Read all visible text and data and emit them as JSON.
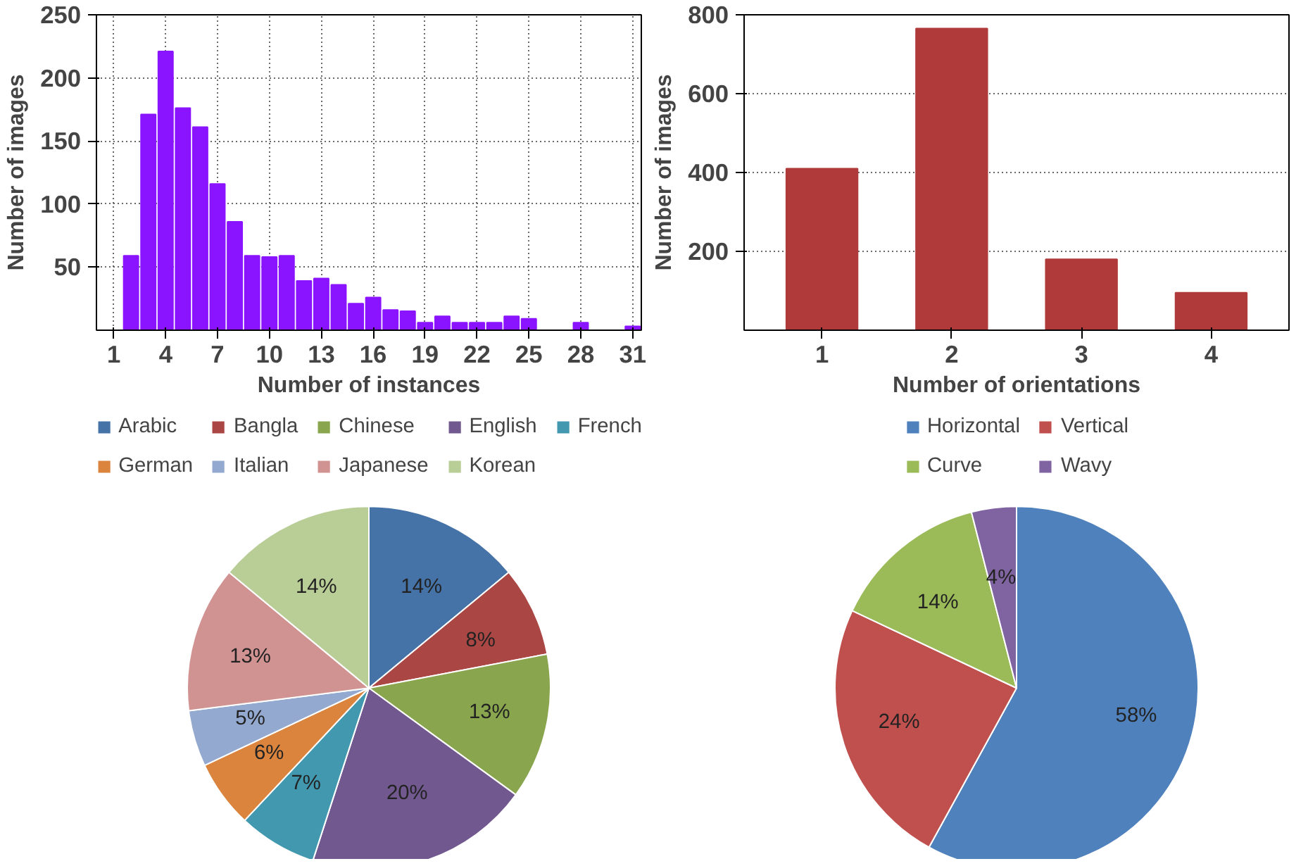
{
  "chart_data": [
    {
      "type": "bar",
      "xlabel": "Number of instances",
      "ylabel": "Number of images",
      "x": [
        2,
        3,
        4,
        5,
        6,
        7,
        8,
        9,
        10,
        11,
        12,
        13,
        14,
        15,
        16,
        17,
        18,
        19,
        20,
        21,
        22,
        23,
        24,
        25,
        28,
        31
      ],
      "values": [
        59,
        171,
        221,
        176,
        161,
        116,
        86,
        59,
        58,
        59,
        39,
        41,
        36,
        21,
        26,
        16,
        15,
        6,
        11,
        6,
        6,
        6,
        11,
        9,
        6,
        3
      ],
      "color": "#8a14ff",
      "xlim": [
        0,
        31.5
      ],
      "xticks": [
        1,
        4,
        7,
        10,
        13,
        16,
        19,
        22,
        25,
        28,
        31
      ],
      "ylim": [
        0,
        250
      ],
      "yticks": [
        50,
        100,
        150,
        200,
        250
      ],
      "grid": true
    },
    {
      "type": "bar",
      "xlabel": "Number of orientations",
      "ylabel": "Number of images",
      "categories": [
        "1",
        "2",
        "3",
        "4"
      ],
      "values": [
        410,
        765,
        180,
        95
      ],
      "color": "#b03a3a",
      "ylim": [
        0,
        800
      ],
      "yticks": [
        200,
        400,
        600,
        800
      ],
      "grid": "y"
    },
    {
      "type": "pie",
      "categories": [
        "Arabic",
        "Bangla",
        "Chinese",
        "English",
        "French",
        "German",
        "Italian",
        "Japanese",
        "Korean"
      ],
      "values": [
        14,
        8,
        13,
        20,
        7,
        6,
        5,
        13,
        14
      ],
      "colors": [
        "#4572a7",
        "#aa4643",
        "#89a54e",
        "#71588f",
        "#4198af",
        "#db843d",
        "#93a9cf",
        "#d19392",
        "#b9cd96"
      ],
      "value_labels": [
        "14%",
        "8%",
        "13%",
        "20%",
        "7%",
        "6%",
        "5%",
        "13%",
        "14%"
      ],
      "legend": "top"
    },
    {
      "type": "pie",
      "categories": [
        "Horizontal",
        "Vertical",
        "Curve",
        "Wavy"
      ],
      "values": [
        58,
        24,
        14,
        4
      ],
      "colors": [
        "#4f81bd",
        "#c0504d",
        "#9bbb59",
        "#8064a2"
      ],
      "value_labels": [
        "58%",
        "24%",
        "14%",
        "4%"
      ],
      "legend": "top"
    }
  ]
}
